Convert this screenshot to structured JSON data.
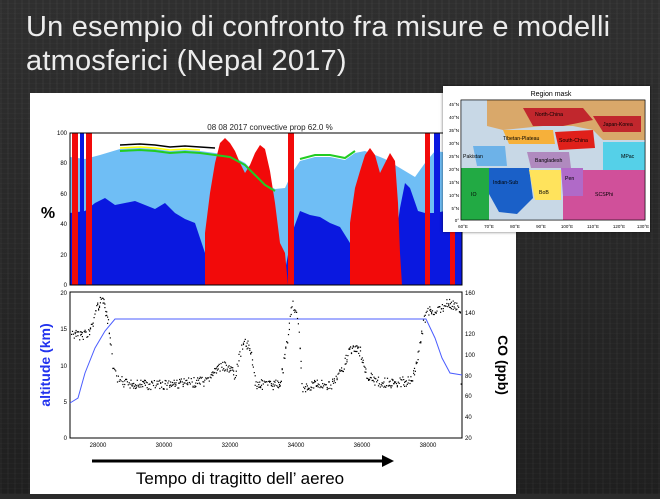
{
  "slide": {
    "title_line1": "Un esempio di confronto fra misure e modelli",
    "title_line2": "atmosferici (Nepal 2017)"
  },
  "top_panel": {
    "title": "08 08 2017  convective prop  62.0 %",
    "ylabel": "%",
    "yticks": [
      "100",
      "80",
      "60",
      "40",
      "20",
      "0"
    ]
  },
  "bottom_panel": {
    "ylabel_left": "altitude (km)",
    "ylabel_right": "CO (ppb)",
    "yticks_left": [
      "20",
      "15",
      "10",
      "5",
      "0"
    ],
    "yticks_right": [
      "160",
      "140",
      "120",
      "100",
      "80",
      "60",
      "40",
      "20"
    ],
    "xticks": [
      "28000",
      "30000",
      "32000",
      "34000",
      "36000",
      "38000"
    ]
  },
  "caption": "Tempo di tragitto dell’ aereo",
  "colors": {
    "blue_region": "#0a18e0",
    "light_blue_region": "#6fbef5",
    "red_region": "#f20a0a",
    "altitude_line": "#4b5dff",
    "co_points": "#000000"
  },
  "inset_map": {
    "title": "Region mask",
    "regions": [
      "North-China",
      "Japan-Korea",
      "Tibetan-Plateau",
      "South-China",
      "Pakistan",
      "Bangladesh",
      "MPac",
      "IO",
      "Indian-Sub",
      "Pen",
      "BoB",
      "SCSPhi"
    ],
    "lat_ticks": [
      "45°N",
      "40°N",
      "35°N",
      "30°N",
      "25°N",
      "20°N",
      "15°N",
      "10°N",
      "5°N",
      "0°"
    ],
    "lon_ticks": [
      "60°E",
      "70°E",
      "80°E",
      "90°E",
      "100°E",
      "110°E",
      "120°E",
      "130°E"
    ]
  }
}
